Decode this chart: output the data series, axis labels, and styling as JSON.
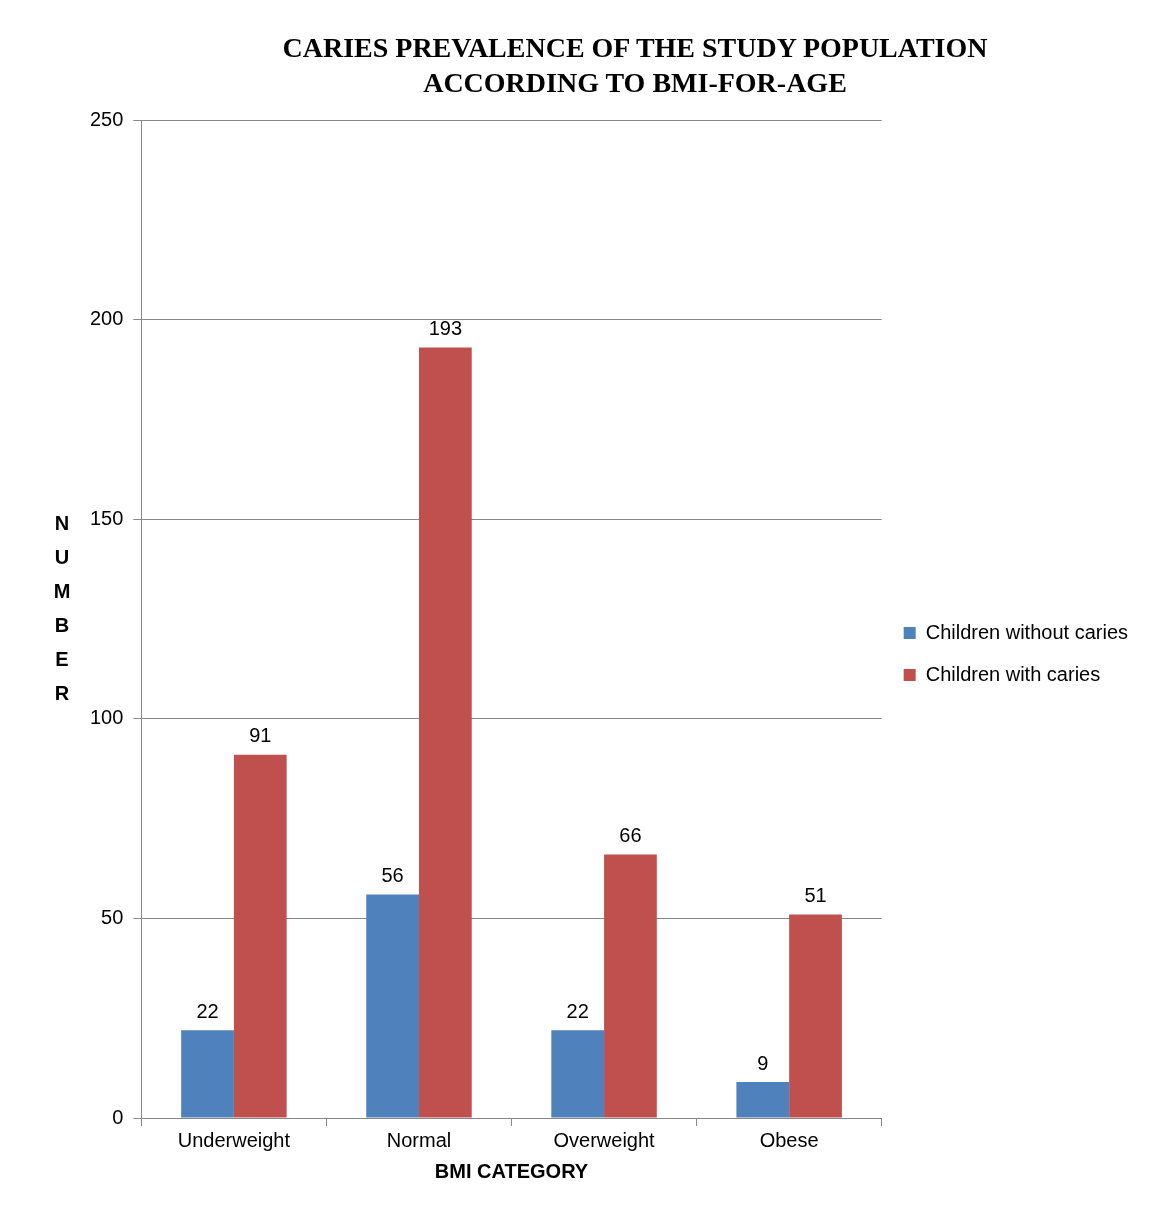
{
  "chart_data": {
    "type": "bar",
    "title": "CARIES PREVALENCE OF THE STUDY POPULATION ACCORDING TO BMI-FOR-AGE",
    "xlabel": "BMI CATEGORY",
    "ylabel": "NUMBER",
    "categories": [
      "Underweight",
      "Normal",
      "Overweight",
      "Obese"
    ],
    "series": [
      {
        "name": "Children without caries",
        "color": "#4f81bd",
        "values": [
          22,
          56,
          22,
          9
        ]
      },
      {
        "name": "Children with caries",
        "color": "#c0504d",
        "values": [
          91,
          193,
          66,
          51
        ]
      }
    ],
    "ylim": [
      0,
      250
    ],
    "yticks": [
      0,
      50,
      100,
      150,
      200,
      250
    ],
    "grid": "y",
    "legend": "right",
    "data_labels": true
  }
}
